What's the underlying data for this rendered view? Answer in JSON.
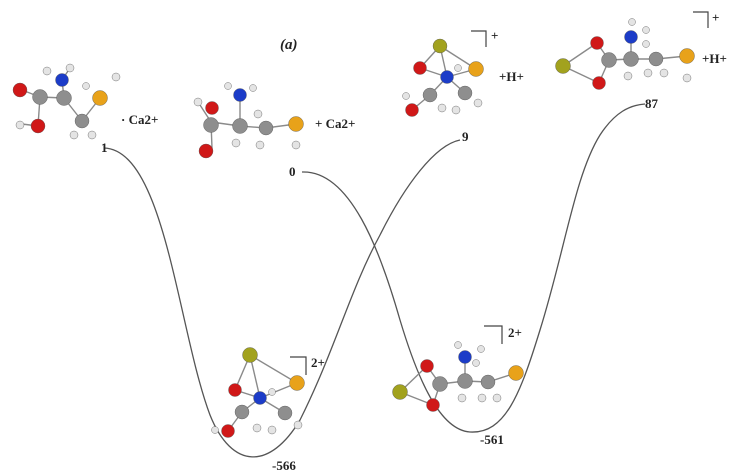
{
  "figure": {
    "panel_label": "(a)",
    "colors": {
      "curve": "#555555",
      "bond": "#8a8a8a",
      "carbon": "#8e8e8e",
      "hydrogen": "#e4e4e4",
      "nitrogen": "#1c3cc8",
      "oxygen": "#d01818",
      "sulfur": "#e8a21a",
      "calcium": "#a2a21e"
    },
    "species": [
      {
        "id": "s1",
        "charge": "· Ca2+",
        "energy": "1"
      },
      {
        "id": "s2",
        "charge": "+ Ca2+",
        "energy": "0"
      },
      {
        "id": "s3",
        "charge": "+",
        "extra": "+H+",
        "energy": "9"
      },
      {
        "id": "s4",
        "charge": "+",
        "extra": "+H+",
        "energy": "87"
      },
      {
        "id": "s5",
        "charge": "2+",
        "energy": "-566"
      },
      {
        "id": "s6",
        "charge": "2+",
        "energy": "-561"
      }
    ]
  }
}
